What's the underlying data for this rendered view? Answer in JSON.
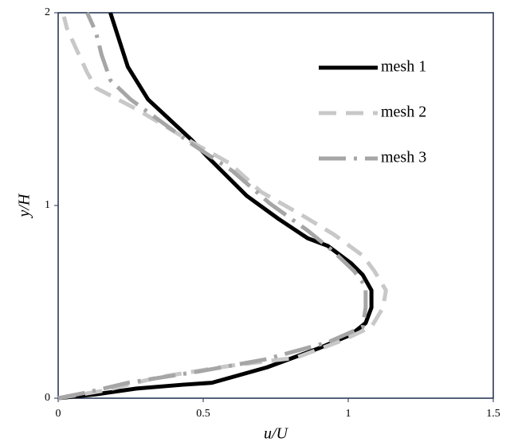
{
  "chart_data": {
    "type": "line",
    "x_label": "u/U",
    "y_label": "y/H",
    "xlim": [
      0,
      1.5
    ],
    "ylim": [
      0,
      2
    ],
    "xticks": [
      0,
      0.5,
      1,
      1.5
    ],
    "yticks": [
      0,
      1,
      2
    ],
    "legend": "upper right",
    "series": [
      {
        "name": "mesh 1",
        "color": "#000000",
        "dash": "solid",
        "x": [
          0,
          0.13,
          0.27,
          0.43,
          0.53,
          0.72,
          0.9,
          1.01,
          1.06,
          1.08,
          1.08,
          1.05,
          1.01,
          0.93,
          0.86,
          0.76,
          0.65,
          0.57,
          0.51,
          0.46,
          0.31,
          0.24,
          0.18
        ],
        "values": [
          0,
          0.02,
          0.05,
          0.07,
          0.08,
          0.16,
          0.26,
          0.33,
          0.39,
          0.47,
          0.56,
          0.64,
          0.7,
          0.79,
          0.83,
          0.93,
          1.05,
          1.17,
          1.26,
          1.34,
          1.55,
          1.72,
          2.0
        ]
      },
      {
        "name": "mesh 2",
        "color": "#c8c8c8",
        "dash": "dashed",
        "x": [
          0,
          0.16,
          0.35,
          0.6,
          0.82,
          0.98,
          1.08,
          1.12,
          1.13,
          1.09,
          1.05,
          0.95,
          0.84,
          0.7,
          0.59,
          0.46,
          0.27,
          0.13,
          0.1,
          0.06,
          0.03,
          0.02
        ],
        "values": [
          0,
          0.04,
          0.11,
          0.17,
          0.21,
          0.3,
          0.37,
          0.47,
          0.56,
          0.66,
          0.74,
          0.85,
          0.95,
          1.07,
          1.22,
          1.33,
          1.5,
          1.61,
          1.69,
          1.82,
          1.92,
          1.98
        ]
      },
      {
        "name": "mesh 3",
        "color": "#a6a6a6",
        "dash": "longdash",
        "x": [
          0,
          0.1,
          0.24,
          0.49,
          0.71,
          0.93,
          1.05,
          1.06,
          1.06,
          1.02,
          0.95,
          0.86,
          0.73,
          0.6,
          0.46,
          0.25,
          0.18,
          0.15,
          0.13,
          0.1
        ],
        "values": [
          0,
          0.03,
          0.08,
          0.14,
          0.2,
          0.29,
          0.37,
          0.47,
          0.58,
          0.66,
          0.76,
          0.87,
          1.01,
          1.18,
          1.32,
          1.55,
          1.65,
          1.78,
          1.9,
          2.0
        ]
      }
    ]
  }
}
